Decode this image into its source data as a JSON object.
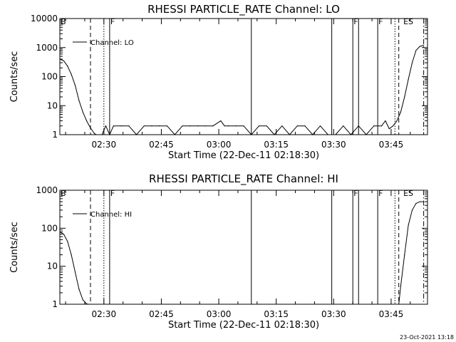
{
  "footer_stamp": "23-Oct-2021 13:18",
  "chart_data": [
    {
      "type": "line",
      "title": "RHESSI PARTICLE_RATE Channel: LO",
      "xlabel": "Start Time (22-Dec-11 02:18:30)",
      "ylabel": "Counts/sec",
      "yscale": "log",
      "ylim": [
        1,
        10000
      ],
      "xlim_minutes": [
        0,
        96
      ],
      "xticks": [
        "02:30",
        "02:45",
        "03:00",
        "03:15",
        "03:30",
        "03:45"
      ],
      "yticks": [
        "1",
        "10",
        "100",
        "1000",
        "10000"
      ],
      "legend": "Channel: LO",
      "legend_position": "top-left",
      "flags": [
        {
          "label": "B",
          "minute": 0
        },
        {
          "label": "F",
          "minute": 13
        },
        {
          "label": "F",
          "minute": 76.5
        },
        {
          "label": "F",
          "minute": 83
        },
        {
          "label": "ES",
          "minute": 89.5
        }
      ],
      "events": [
        {
          "minute": 8,
          "style": "dashed"
        },
        {
          "minute": 11.5,
          "style": "dotted"
        },
        {
          "minute": 13,
          "style": "solid"
        },
        {
          "minute": 50,
          "style": "solid"
        },
        {
          "minute": 71,
          "style": "solid"
        },
        {
          "minute": 76.5,
          "style": "solid"
        },
        {
          "minute": 78,
          "style": "solid"
        },
        {
          "minute": 83,
          "style": "solid"
        },
        {
          "minute": 87.5,
          "style": "dotted"
        },
        {
          "minute": 88.5,
          "style": "dashed"
        },
        {
          "minute": 95,
          "style": "dashdot"
        }
      ],
      "series": [
        {
          "name": "Channel: LO",
          "x": [
            0,
            1,
            2,
            3,
            4,
            5,
            6,
            7,
            8,
            9,
            9.5,
            10.5,
            11,
            12,
            13,
            14,
            16,
            18,
            20,
            22,
            24,
            26,
            28,
            30,
            32,
            34,
            36,
            38,
            40,
            42,
            43,
            44,
            46,
            48,
            50,
            52,
            54,
            56,
            58,
            60,
            62,
            64,
            66,
            68,
            70,
            72,
            74,
            76,
            78,
            80,
            82,
            84,
            85,
            86,
            87,
            88,
            89,
            90,
            91,
            92,
            93,
            94,
            95
          ],
          "y": [
            400,
            350,
            230,
            120,
            50,
            15,
            6,
            3,
            1.7,
            1.1,
            1,
            1,
            1,
            2,
            1,
            2,
            2,
            2,
            1,
            2,
            2,
            2,
            2,
            1,
            2,
            2,
            2,
            2,
            2,
            3,
            2,
            2,
            2,
            2,
            1,
            2,
            2,
            1,
            2,
            1,
            2,
            2,
            1,
            2,
            1,
            1,
            2,
            1,
            2,
            1,
            2,
            2,
            3,
            1.6,
            2,
            3,
            6,
            20,
            80,
            300,
            800,
            1100,
            1200
          ]
        }
      ]
    },
    {
      "type": "line",
      "title": "RHESSI PARTICLE_RATE Channel: HI",
      "xlabel": "Start Time (22-Dec-11 02:18:30)",
      "ylabel": "Counts/sec",
      "yscale": "log",
      "ylim": [
        1,
        1000
      ],
      "xlim_minutes": [
        0,
        96
      ],
      "xticks": [
        "02:30",
        "02:45",
        "03:00",
        "03:15",
        "03:30",
        "03:45"
      ],
      "yticks": [
        "1",
        "10",
        "100",
        "1000"
      ],
      "legend": "Channel: HI",
      "legend_position": "top-left",
      "flags": [
        {
          "label": "B",
          "minute": 0
        },
        {
          "label": "F",
          "minute": 13
        },
        {
          "label": "F",
          "minute": 76.5
        },
        {
          "label": "F",
          "minute": 83
        },
        {
          "label": "ES",
          "minute": 89.5
        }
      ],
      "events": [
        {
          "minute": 8,
          "style": "dashed"
        },
        {
          "minute": 11.5,
          "style": "dotted"
        },
        {
          "minute": 13,
          "style": "solid"
        },
        {
          "minute": 50,
          "style": "solid"
        },
        {
          "minute": 71,
          "style": "solid"
        },
        {
          "minute": 76.5,
          "style": "solid"
        },
        {
          "minute": 78,
          "style": "solid"
        },
        {
          "minute": 83,
          "style": "solid"
        },
        {
          "minute": 87.5,
          "style": "dotted"
        },
        {
          "minute": 88.5,
          "style": "dashed"
        },
        {
          "minute": 95,
          "style": "dashdot"
        }
      ],
      "series": [
        {
          "name": "Channel: HI",
          "x": [
            0,
            1,
            2,
            3,
            4,
            5,
            6,
            7,
            7.5,
            88.5,
            89,
            90,
            91,
            92,
            93,
            94,
            95
          ],
          "y": [
            80,
            70,
            45,
            20,
            7,
            2.5,
            1.3,
            1.02,
            1,
            1,
            3,
            20,
            120,
            300,
            450,
            500,
            500
          ]
        }
      ]
    }
  ]
}
